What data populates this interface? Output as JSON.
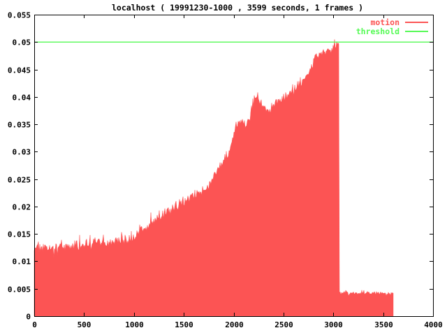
{
  "header": {
    "title": "localhost ( 19991230-1000 , 3599 seconds, 1 frames )"
  },
  "colors": {
    "background": "#ffffff",
    "frame": "#000000",
    "text": "#000000",
    "motion": "#fc5454",
    "threshold": "#55fa55"
  },
  "legend": {
    "items": [
      {
        "label": "motion",
        "color": "#fc5454"
      },
      {
        "label": "threshold",
        "color": "#55fa55"
      }
    ]
  },
  "chart_data": {
    "type": "area",
    "title": "localhost ( 19991230-1000 , 3599 seconds, 1 frames )",
    "xlabel": "",
    "ylabel": "",
    "xlim": [
      0,
      4000
    ],
    "ylim": [
      0,
      0.055
    ],
    "grid": false,
    "legend_position": "top-right",
    "x_ticks": [
      0,
      500,
      1000,
      1500,
      2000,
      2500,
      3000,
      3500,
      4000
    ],
    "x_tick_labels": [
      "0",
      "500",
      "1000",
      "1500",
      "2000",
      "2500",
      "3000",
      "3500",
      "4000"
    ],
    "y_ticks": [
      0,
      0.005,
      0.01,
      0.015,
      0.02,
      0.025,
      0.03,
      0.035,
      0.04,
      0.045,
      0.05,
      0.055
    ],
    "y_tick_labels": [
      "0",
      "0.005",
      "0.01",
      "0.015",
      "0.02",
      "0.025",
      "0.03",
      "0.035",
      "0.04",
      "0.045",
      "0.05",
      "0.055"
    ],
    "series": [
      {
        "name": "motion",
        "type": "area",
        "color": "#fc5454",
        "x_end": 3599,
        "drop_time": 3056,
        "noise_amplitude_main": 0.0012,
        "noise_amplitude_tail": 0.0004,
        "value_cap": 0.0507,
        "envelope": [
          [
            0,
            0.0126
          ],
          [
            100,
            0.0126
          ],
          [
            200,
            0.0126
          ],
          [
            300,
            0.0127
          ],
          [
            400,
            0.0127
          ],
          [
            500,
            0.0128
          ],
          [
            570,
            0.0131
          ],
          [
            630,
            0.0137
          ],
          [
            660,
            0.0138
          ],
          [
            700,
            0.0133
          ],
          [
            750,
            0.0132
          ],
          [
            800,
            0.0133
          ],
          [
            850,
            0.0135
          ],
          [
            900,
            0.0138
          ],
          [
            950,
            0.0141
          ],
          [
            1000,
            0.0146
          ],
          [
            1060,
            0.0154
          ],
          [
            1130,
            0.0163
          ],
          [
            1200,
            0.0173
          ],
          [
            1270,
            0.0183
          ],
          [
            1340,
            0.0192
          ],
          [
            1400,
            0.0199
          ],
          [
            1450,
            0.0204
          ],
          [
            1500,
            0.021
          ],
          [
            1550,
            0.0216
          ],
          [
            1600,
            0.022
          ],
          [
            1650,
            0.0224
          ],
          [
            1700,
            0.0229
          ],
          [
            1730,
            0.0233
          ],
          [
            1760,
            0.0245
          ],
          [
            1800,
            0.0256
          ],
          [
            1850,
            0.0268
          ],
          [
            1900,
            0.0282
          ],
          [
            1940,
            0.0295
          ],
          [
            1970,
            0.0312
          ],
          [
            1995,
            0.0332
          ],
          [
            2015,
            0.035
          ],
          [
            2045,
            0.0356
          ],
          [
            2080,
            0.0348
          ],
          [
            2120,
            0.0351
          ],
          [
            2160,
            0.0362
          ],
          [
            2190,
            0.0386
          ],
          [
            2215,
            0.0403
          ],
          [
            2240,
            0.0398
          ],
          [
            2270,
            0.0388
          ],
          [
            2310,
            0.0378
          ],
          [
            2350,
            0.0374
          ],
          [
            2390,
            0.0381
          ],
          [
            2430,
            0.0389
          ],
          [
            2470,
            0.0396
          ],
          [
            2510,
            0.0399
          ],
          [
            2550,
            0.0404
          ],
          [
            2590,
            0.0409
          ],
          [
            2630,
            0.0417
          ],
          [
            2670,
            0.0426
          ],
          [
            2710,
            0.0435
          ],
          [
            2745,
            0.0442
          ],
          [
            2775,
            0.0455
          ],
          [
            2805,
            0.0468
          ],
          [
            2835,
            0.0476
          ],
          [
            2865,
            0.0482
          ],
          [
            2895,
            0.0487
          ],
          [
            2925,
            0.0484
          ],
          [
            2955,
            0.0481
          ],
          [
            2985,
            0.0488
          ],
          [
            3010,
            0.0491
          ],
          [
            3030,
            0.0494
          ],
          [
            3045,
            0.0496
          ],
          [
            3052,
            0.0502
          ],
          [
            3055,
            0.0497
          ],
          [
            3058,
            0.0043
          ],
          [
            3100,
            0.0042
          ],
          [
            3180,
            0.0043
          ],
          [
            3260,
            0.0042
          ],
          [
            3340,
            0.0043
          ],
          [
            3420,
            0.0042
          ],
          [
            3500,
            0.0042
          ],
          [
            3599,
            0.0041
          ]
        ]
      },
      {
        "name": "threshold",
        "type": "hline",
        "color": "#55fa55",
        "value": 0.05
      }
    ]
  }
}
